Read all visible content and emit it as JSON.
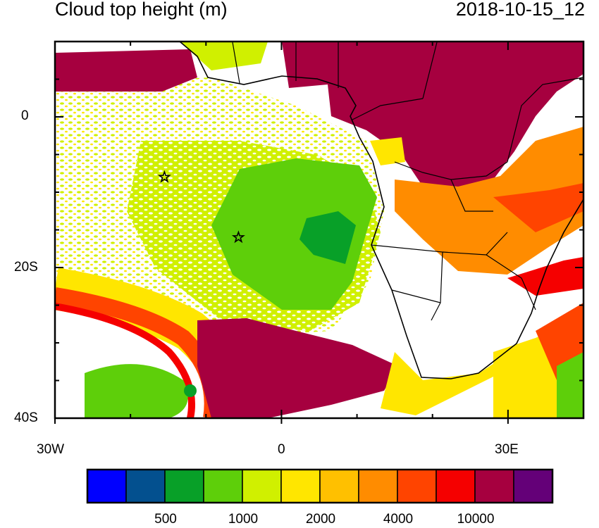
{
  "title": "Cloud top height (m)",
  "datetime": "2018-10-15_12",
  "axes": {
    "lat_labels": [
      "0",
      "20S",
      "40S"
    ],
    "lon_labels": [
      "30W",
      "0",
      "30E"
    ],
    "lon_range": [
      -30,
      40
    ],
    "lat_range": [
      -40,
      10
    ]
  },
  "colorbar": {
    "colors": [
      "#0000ff",
      "#03508f",
      "#08a028",
      "#5ecf0a",
      "#d0f000",
      "#ffe600",
      "#ffc000",
      "#ff8c00",
      "#ff4400",
      "#f50000",
      "#a6003f",
      "#640078"
    ],
    "labels": [
      "500",
      "1000",
      "2000",
      "4000",
      "10000"
    ]
  },
  "markers": [
    {
      "type": "star",
      "lon": -15.5,
      "lat": -8
    },
    {
      "type": "star",
      "lon": -5.7,
      "lat": -16
    }
  ]
}
